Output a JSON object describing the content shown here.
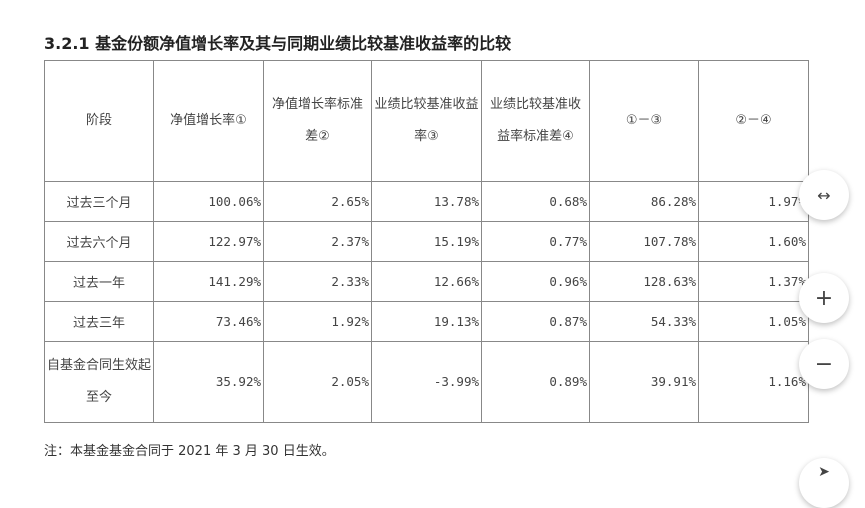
{
  "title": "3.2.1 基金份额净值增长率及其与同期业绩比较基准收益率的比较",
  "headers": [
    "阶段",
    "净值增长率①",
    "净值增长率标准差②",
    "业绩比较基准收益率③",
    "业绩比较基准收益率标准差④",
    "①－③",
    "②－④"
  ],
  "rows": [
    [
      "过去三个月",
      "100.06%",
      "2.65%",
      "13.78%",
      "0.68%",
      "86.28%",
      "1.97%"
    ],
    [
      "过去六个月",
      "122.97%",
      "2.37%",
      "15.19%",
      "0.77%",
      "107.78%",
      "1.60%"
    ],
    [
      "过去一年",
      "141.29%",
      "2.33%",
      "12.66%",
      "0.96%",
      "128.63%",
      "1.37%"
    ],
    [
      "过去三年",
      "73.46%",
      "1.92%",
      "19.13%",
      "0.87%",
      "54.33%",
      "1.05%"
    ],
    [
      "自基金合同生效起至今",
      "35.92%",
      "2.05%",
      "-3.99%",
      "0.89%",
      "39.91%",
      "1.16%"
    ]
  ],
  "note": "注：本基金基金合同于 2021 年 3 月 30 日生效。",
  "controls": {
    "fit_icon": "↔",
    "zoom_in_icon": "+",
    "zoom_out_icon": "−",
    "cursor_icon": "pointer"
  }
}
